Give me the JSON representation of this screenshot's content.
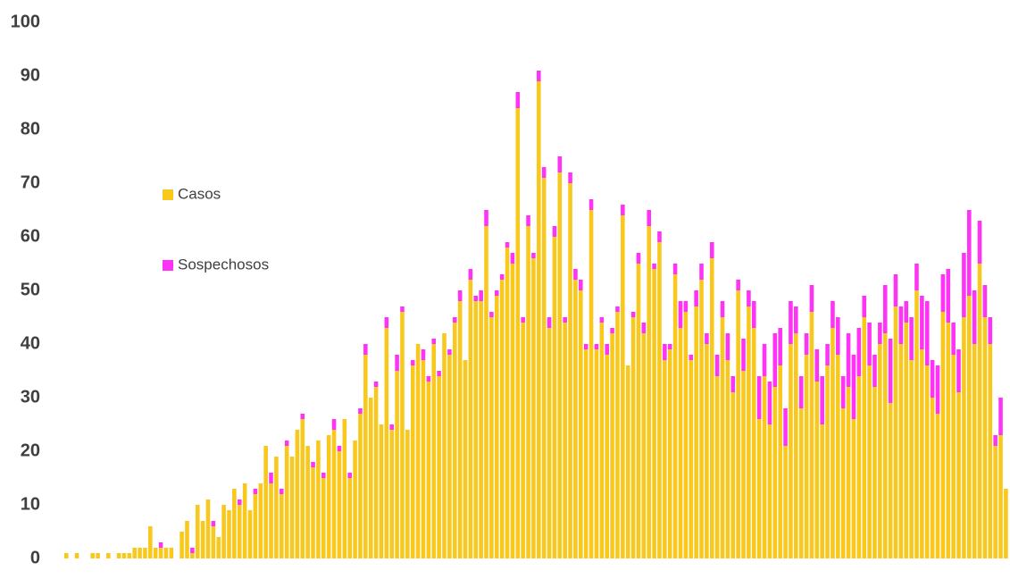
{
  "chart_data": {
    "type": "bar",
    "stacked": true,
    "series": [
      {
        "name": "Casos",
        "color": "#f8c81c",
        "values": [
          1,
          0,
          1,
          0,
          0,
          1,
          1,
          0,
          1,
          0,
          1,
          1,
          1,
          2,
          2,
          2,
          6,
          2,
          2,
          2,
          2,
          0,
          5,
          7,
          1,
          10,
          7,
          11,
          6,
          4,
          10,
          9,
          13,
          10,
          14,
          9,
          12,
          14,
          21,
          14,
          19,
          12,
          21,
          19,
          24,
          26,
          21,
          17,
          22,
          15,
          23,
          24,
          20,
          26,
          15,
          22,
          27,
          38,
          30,
          32,
          25,
          43,
          24,
          35,
          46,
          24,
          36,
          40,
          37,
          33,
          40,
          34,
          42,
          38,
          44,
          48,
          37,
          52,
          48,
          48,
          62,
          45,
          49,
          52,
          58,
          55,
          84,
          44,
          62,
          56,
          89,
          71,
          43,
          60,
          72,
          44,
          70,
          52,
          50,
          39,
          65,
          39,
          44,
          38,
          42,
          46,
          64,
          36,
          45,
          55,
          42,
          62,
          54,
          59,
          37,
          39,
          53,
          43,
          46,
          37,
          47,
          52,
          40,
          56,
          34,
          45,
          37,
          31,
          50,
          35,
          47,
          43,
          26,
          34,
          25,
          32,
          36,
          21,
          40,
          42,
          28,
          38,
          46,
          33,
          25,
          36,
          43,
          38,
          28,
          32,
          26,
          34,
          45,
          36,
          32,
          40,
          42,
          29,
          47,
          40,
          44,
          37,
          50,
          39,
          36,
          30,
          27,
          46,
          44,
          38,
          31,
          45,
          49,
          40,
          55,
          45,
          40,
          21,
          23,
          13
        ]
      },
      {
        "name": "Sospechosos",
        "color": "#ff33f5",
        "values": [
          0,
          0,
          0,
          0,
          0,
          0,
          0,
          0,
          0,
          0,
          0,
          0,
          0,
          0,
          0,
          0,
          0,
          0,
          1,
          0,
          0,
          0,
          0,
          0,
          1,
          0,
          0,
          0,
          1,
          0,
          0,
          0,
          0,
          1,
          0,
          0,
          1,
          0,
          0,
          2,
          0,
          1,
          1,
          0,
          0,
          1,
          0,
          1,
          0,
          1,
          0,
          2,
          1,
          0,
          1,
          0,
          1,
          2,
          0,
          1,
          0,
          2,
          1,
          3,
          1,
          0,
          1,
          0,
          2,
          1,
          1,
          1,
          0,
          1,
          1,
          2,
          0,
          2,
          1,
          2,
          3,
          1,
          1,
          1,
          1,
          2,
          3,
          1,
          2,
          1,
          2,
          2,
          2,
          2,
          3,
          1,
          2,
          2,
          2,
          1,
          2,
          1,
          1,
          2,
          1,
          1,
          2,
          0,
          1,
          2,
          2,
          3,
          1,
          2,
          3,
          1,
          2,
          5,
          2,
          1,
          3,
          3,
          2,
          3,
          4,
          3,
          5,
          3,
          2,
          6,
          3,
          5,
          8,
          6,
          8,
          10,
          7,
          7,
          8,
          5,
          6,
          4,
          5,
          6,
          9,
          4,
          5,
          7,
          6,
          10,
          12,
          9,
          4,
          8,
          6,
          4,
          9,
          12,
          6,
          7,
          4,
          8,
          5,
          10,
          12,
          7,
          9,
          7,
          10,
          6,
          8,
          12,
          16,
          10,
          8,
          6,
          5,
          2,
          7,
          0
        ]
      }
    ],
    "ylim": [
      0,
      100
    ],
    "yticks": [
      0,
      10,
      20,
      30,
      40,
      50,
      60,
      70,
      80,
      90,
      100
    ],
    "grid": false
  }
}
